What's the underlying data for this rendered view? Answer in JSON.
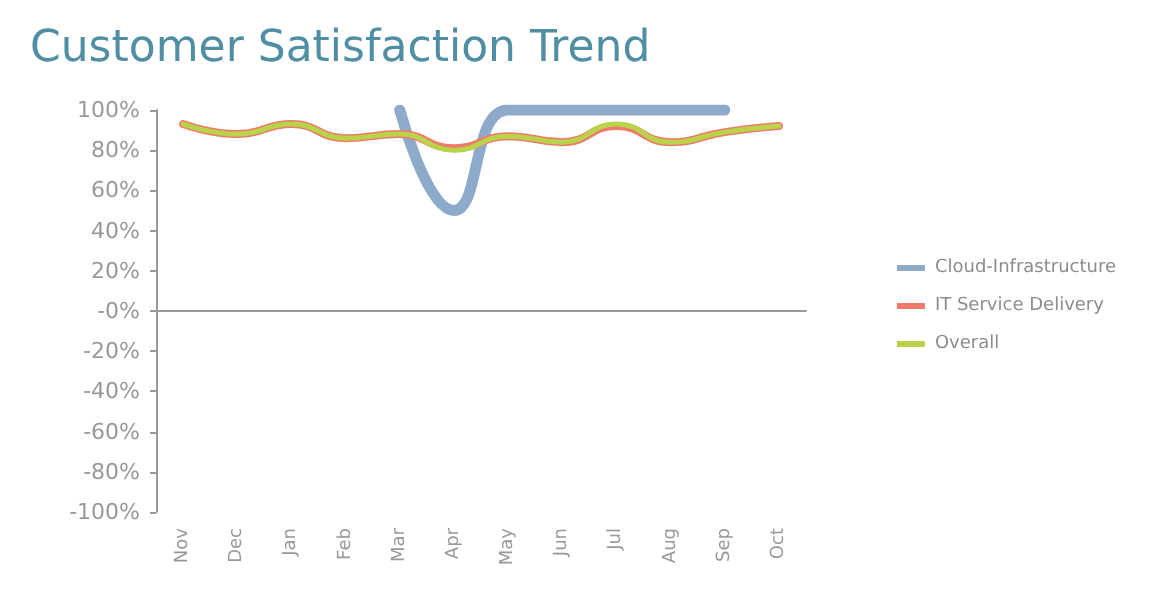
{
  "chart_data": {
    "type": "line",
    "title": "Customer Satisfaction Trend",
    "categories": [
      "Nov",
      "Dec",
      "Jan",
      "Feb",
      "Mar",
      "Apr",
      "May",
      "Jun",
      "Jul",
      "Aug",
      "Sep",
      "Oct"
    ],
    "series": [
      {
        "name": "Cloud-Infrastructure",
        "color": "#8eaacb",
        "values": [
          null,
          null,
          null,
          null,
          100,
          50,
          100,
          100,
          100,
          100,
          100,
          null
        ]
      },
      {
        "name": "IT Service Delivery",
        "color": "#f07a6a",
        "values": [
          93,
          88,
          93,
          86,
          88,
          81,
          87,
          84,
          92,
          84,
          89,
          92
        ]
      },
      {
        "name": "Overall",
        "color": "#b9d34a",
        "values": [
          93,
          88,
          93,
          86,
          88,
          80,
          87,
          84,
          93,
          84,
          89,
          92
        ]
      }
    ],
    "ylim": [
      -100,
      100
    ],
    "yticks": [
      {
        "value": -100,
        "label": "-100%"
      },
      {
        "value": -80,
        "label": "-80%"
      },
      {
        "value": -60,
        "label": "-60%"
      },
      {
        "value": -40,
        "label": "-40%"
      },
      {
        "value": -20,
        "label": "-20%"
      },
      {
        "value": 0,
        "label": "-0%"
      },
      {
        "value": 20,
        "label": "20%"
      },
      {
        "value": 40,
        "label": "40%"
      },
      {
        "value": 60,
        "label": "60%"
      },
      {
        "value": 80,
        "label": "80%"
      },
      {
        "value": 100,
        "label": "100%"
      }
    ],
    "legend": "right",
    "marker": "none",
    "line_style": "solid"
  }
}
